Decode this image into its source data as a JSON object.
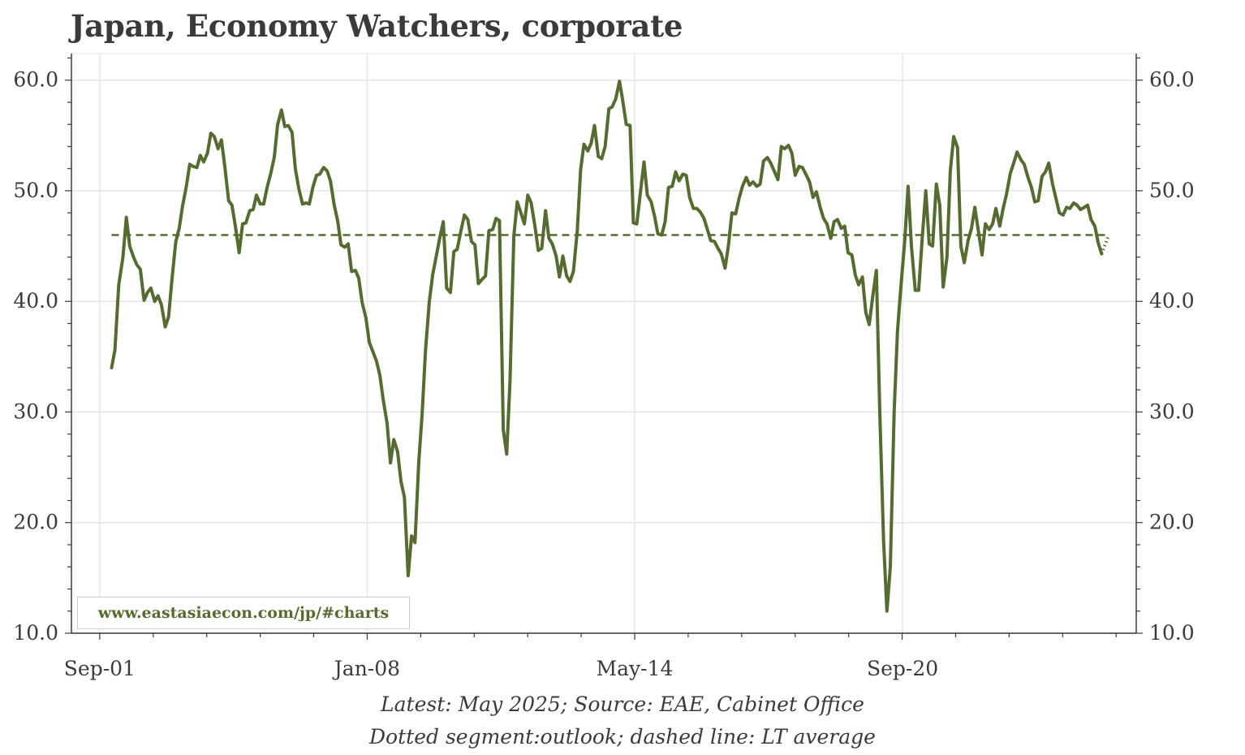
{
  "title": "Japan, Economy Watchers, corporate",
  "footnotes": [
    "Latest: May 2025; Source: EAE, Cabinet Office",
    "Dotted segment:outlook; dashed line: LT average"
  ],
  "watermark": "www.eastasiaecon.com/jp/#charts",
  "colors": {
    "series": "#556b2f",
    "grid": "#e6e6e6",
    "axis": "#3a3a3a",
    "text": "#3a3a3a"
  },
  "chart_data": {
    "type": "line",
    "title": "Japan, Economy Watchers, corporate",
    "xlabel": "",
    "ylabel": "",
    "ylim": [
      10,
      62.4
    ],
    "xlim": [
      2001.0,
      2026.2
    ],
    "grid": true,
    "y_axis_both_sides": true,
    "legend": "none",
    "y_ticks": [
      {
        "value": 10,
        "label": "10.0"
      },
      {
        "value": 20,
        "label": "20.0"
      },
      {
        "value": 30,
        "label": "30.0"
      },
      {
        "value": 40,
        "label": "40.0"
      },
      {
        "value": 50,
        "label": "50.0"
      },
      {
        "value": 60,
        "label": "60.0"
      }
    ],
    "x_ticks": [
      {
        "value": 2001.67,
        "label": "Sep-01"
      },
      {
        "value": 2008.0,
        "label": "Jan-08"
      },
      {
        "value": 2014.33,
        "label": "May-14"
      },
      {
        "value": 2020.67,
        "label": "Sep-20"
      }
    ],
    "series": [
      {
        "role": "actual",
        "style": "solid",
        "points": [
          [
            2001.95,
            34.0
          ],
          [
            2002.03,
            35.6
          ],
          [
            2002.12,
            41.5
          ],
          [
            2002.22,
            44.0
          ],
          [
            2002.3,
            47.6
          ],
          [
            2002.38,
            45.0
          ],
          [
            2002.47,
            44.0
          ],
          [
            2002.55,
            43.3
          ],
          [
            2002.63,
            42.9
          ],
          [
            2002.72,
            40.1
          ],
          [
            2002.8,
            40.8
          ],
          [
            2002.88,
            41.2
          ],
          [
            2002.97,
            40.0
          ],
          [
            2003.05,
            40.5
          ],
          [
            2003.13,
            39.7
          ],
          [
            2003.22,
            37.7
          ],
          [
            2003.3,
            38.6
          ],
          [
            2003.38,
            42.0
          ],
          [
            2003.47,
            45.4
          ],
          [
            2003.55,
            46.6
          ],
          [
            2003.63,
            48.6
          ],
          [
            2003.72,
            50.4
          ],
          [
            2003.8,
            52.4
          ],
          [
            2003.88,
            52.2
          ],
          [
            2003.97,
            52.1
          ],
          [
            2004.05,
            53.2
          ],
          [
            2004.13,
            52.6
          ],
          [
            2004.22,
            53.4
          ],
          [
            2004.3,
            55.2
          ],
          [
            2004.38,
            54.9
          ],
          [
            2004.47,
            53.8
          ],
          [
            2004.55,
            54.6
          ],
          [
            2004.63,
            52.2
          ],
          [
            2004.72,
            49.1
          ],
          [
            2004.8,
            48.7
          ],
          [
            2004.88,
            46.8
          ],
          [
            2004.97,
            44.4
          ],
          [
            2005.05,
            47.0
          ],
          [
            2005.13,
            47.1
          ],
          [
            2005.22,
            48.2
          ],
          [
            2005.3,
            48.3
          ],
          [
            2005.38,
            49.6
          ],
          [
            2005.47,
            48.8
          ],
          [
            2005.55,
            48.8
          ],
          [
            2005.63,
            50.3
          ],
          [
            2005.72,
            51.6
          ],
          [
            2005.8,
            53.0
          ],
          [
            2005.88,
            56.0
          ],
          [
            2005.97,
            57.3
          ],
          [
            2006.05,
            55.8
          ],
          [
            2006.13,
            55.9
          ],
          [
            2006.22,
            55.3
          ],
          [
            2006.3,
            52.0
          ],
          [
            2006.38,
            50.2
          ],
          [
            2006.47,
            48.8
          ],
          [
            2006.55,
            48.9
          ],
          [
            2006.63,
            48.8
          ],
          [
            2006.72,
            50.4
          ],
          [
            2006.8,
            51.4
          ],
          [
            2006.88,
            51.5
          ],
          [
            2006.97,
            52.1
          ],
          [
            2007.05,
            51.8
          ],
          [
            2007.13,
            50.9
          ],
          [
            2007.22,
            48.7
          ],
          [
            2007.3,
            47.3
          ],
          [
            2007.38,
            45.1
          ],
          [
            2007.47,
            44.9
          ],
          [
            2007.55,
            45.2
          ],
          [
            2007.63,
            42.7
          ],
          [
            2007.72,
            42.8
          ],
          [
            2007.8,
            42.1
          ],
          [
            2007.88,
            39.9
          ],
          [
            2007.97,
            38.5
          ],
          [
            2008.05,
            36.3
          ],
          [
            2008.13,
            35.5
          ],
          [
            2008.22,
            34.6
          ],
          [
            2008.3,
            33.3
          ],
          [
            2008.38,
            31.1
          ],
          [
            2008.47,
            29.0
          ],
          [
            2008.55,
            25.4
          ],
          [
            2008.63,
            27.5
          ],
          [
            2008.72,
            26.4
          ],
          [
            2008.8,
            23.7
          ],
          [
            2008.88,
            22.3
          ],
          [
            2008.97,
            15.2
          ],
          [
            2009.05,
            18.8
          ],
          [
            2009.13,
            18.2
          ],
          [
            2009.22,
            25.5
          ],
          [
            2009.3,
            29.8
          ],
          [
            2009.38,
            35.6
          ],
          [
            2009.47,
            40.0
          ],
          [
            2009.55,
            42.4
          ],
          [
            2009.63,
            44.0
          ],
          [
            2009.72,
            45.8
          ],
          [
            2009.8,
            47.2
          ],
          [
            2009.88,
            41.2
          ],
          [
            2009.97,
            40.8
          ],
          [
            2010.05,
            44.5
          ],
          [
            2010.13,
            44.7
          ],
          [
            2010.22,
            46.4
          ],
          [
            2010.3,
            47.8
          ],
          [
            2010.38,
            47.4
          ],
          [
            2010.47,
            45.4
          ],
          [
            2010.55,
            45.1
          ],
          [
            2010.63,
            41.6
          ],
          [
            2010.72,
            42.0
          ],
          [
            2010.8,
            42.3
          ],
          [
            2010.88,
            46.4
          ],
          [
            2010.97,
            46.5
          ],
          [
            2011.05,
            47.5
          ],
          [
            2011.13,
            47.3
          ],
          [
            2011.22,
            28.4
          ],
          [
            2011.3,
            26.2
          ],
          [
            2011.38,
            32.8
          ],
          [
            2011.47,
            45.9
          ],
          [
            2011.55,
            49.0
          ],
          [
            2011.63,
            48.1
          ],
          [
            2011.72,
            47.0
          ],
          [
            2011.8,
            49.6
          ],
          [
            2011.88,
            48.9
          ],
          [
            2011.97,
            46.8
          ],
          [
            2012.05,
            44.6
          ],
          [
            2012.13,
            44.8
          ],
          [
            2012.22,
            48.2
          ],
          [
            2012.3,
            45.7
          ],
          [
            2012.38,
            45.2
          ],
          [
            2012.47,
            44.1
          ],
          [
            2012.55,
            42.2
          ],
          [
            2012.63,
            44.1
          ],
          [
            2012.72,
            42.3
          ],
          [
            2012.8,
            41.8
          ],
          [
            2012.88,
            42.7
          ],
          [
            2012.97,
            46.3
          ],
          [
            2013.05,
            51.9
          ],
          [
            2013.13,
            54.2
          ],
          [
            2013.22,
            53.6
          ],
          [
            2013.3,
            54.3
          ],
          [
            2013.38,
            55.9
          ],
          [
            2013.47,
            53.1
          ],
          [
            2013.55,
            52.9
          ],
          [
            2013.63,
            54.0
          ],
          [
            2013.72,
            57.4
          ],
          [
            2013.8,
            57.6
          ],
          [
            2013.88,
            58.3
          ],
          [
            2013.97,
            59.9
          ],
          [
            2014.05,
            58.1
          ],
          [
            2014.13,
            56.0
          ],
          [
            2014.22,
            55.9
          ],
          [
            2014.3,
            47.1
          ],
          [
            2014.38,
            47.0
          ],
          [
            2014.47,
            50.0
          ],
          [
            2014.55,
            52.6
          ],
          [
            2014.63,
            49.6
          ],
          [
            2014.72,
            49.0
          ],
          [
            2014.8,
            47.7
          ],
          [
            2014.88,
            46.1
          ],
          [
            2014.97,
            46.0
          ],
          [
            2015.05,
            47.2
          ],
          [
            2015.13,
            50.3
          ],
          [
            2015.22,
            50.4
          ],
          [
            2015.3,
            51.7
          ],
          [
            2015.38,
            50.9
          ],
          [
            2015.47,
            51.5
          ],
          [
            2015.55,
            51.4
          ],
          [
            2015.63,
            49.4
          ],
          [
            2015.72,
            48.4
          ],
          [
            2015.8,
            48.4
          ],
          [
            2015.88,
            48.1
          ],
          [
            2015.97,
            47.5
          ],
          [
            2016.05,
            46.5
          ],
          [
            2016.13,
            45.5
          ],
          [
            2016.22,
            45.4
          ],
          [
            2016.3,
            44.8
          ],
          [
            2016.38,
            44.3
          ],
          [
            2016.47,
            43.0
          ],
          [
            2016.55,
            45.1
          ],
          [
            2016.63,
            48.0
          ],
          [
            2016.72,
            47.9
          ],
          [
            2016.8,
            49.3
          ],
          [
            2016.88,
            50.4
          ],
          [
            2016.97,
            51.2
          ],
          [
            2017.05,
            50.5
          ],
          [
            2017.13,
            50.8
          ],
          [
            2017.22,
            50.4
          ],
          [
            2017.3,
            50.6
          ],
          [
            2017.38,
            52.7
          ],
          [
            2017.47,
            53.0
          ],
          [
            2017.55,
            52.5
          ],
          [
            2017.63,
            51.8
          ],
          [
            2017.72,
            51.0
          ],
          [
            2017.8,
            54.0
          ],
          [
            2017.88,
            53.8
          ],
          [
            2017.97,
            54.1
          ],
          [
            2018.05,
            53.4
          ],
          [
            2018.13,
            51.4
          ],
          [
            2018.22,
            52.2
          ],
          [
            2018.3,
            52.1
          ],
          [
            2018.38,
            51.5
          ],
          [
            2018.47,
            50.8
          ],
          [
            2018.55,
            49.4
          ],
          [
            2018.63,
            49.9
          ],
          [
            2018.72,
            48.5
          ],
          [
            2018.8,
            47.5
          ],
          [
            2018.88,
            47.0
          ],
          [
            2018.97,
            45.7
          ],
          [
            2019.05,
            47.2
          ],
          [
            2019.13,
            47.4
          ],
          [
            2019.22,
            46.6
          ],
          [
            2019.3,
            46.8
          ],
          [
            2019.38,
            44.4
          ],
          [
            2019.47,
            44.2
          ],
          [
            2019.55,
            42.4
          ],
          [
            2019.63,
            41.5
          ],
          [
            2019.72,
            42.2
          ],
          [
            2019.8,
            39.0
          ],
          [
            2019.88,
            37.9
          ],
          [
            2019.97,
            40.6
          ],
          [
            2020.05,
            42.8
          ],
          [
            2020.13,
            30.0
          ],
          [
            2020.22,
            18.3
          ],
          [
            2020.3,
            12.0
          ],
          [
            2020.38,
            16.0
          ],
          [
            2020.47,
            30.0
          ],
          [
            2020.55,
            37.3
          ],
          [
            2020.63,
            41.3
          ],
          [
            2020.72,
            45.4
          ],
          [
            2020.8,
            50.4
          ],
          [
            2020.88,
            45.0
          ],
          [
            2020.97,
            41.0
          ],
          [
            2021.05,
            41.0
          ],
          [
            2021.13,
            45.4
          ],
          [
            2021.22,
            50.0
          ],
          [
            2021.3,
            45.2
          ],
          [
            2021.38,
            45.0
          ],
          [
            2021.47,
            50.6
          ],
          [
            2021.55,
            48.7
          ],
          [
            2021.63,
            41.3
          ],
          [
            2021.72,
            44.0
          ],
          [
            2021.8,
            51.8
          ],
          [
            2021.88,
            54.9
          ],
          [
            2021.97,
            53.9
          ],
          [
            2022.05,
            45.0
          ],
          [
            2022.13,
            43.5
          ],
          [
            2022.22,
            45.5
          ],
          [
            2022.3,
            46.6
          ],
          [
            2022.38,
            48.5
          ],
          [
            2022.47,
            46.2
          ],
          [
            2022.55,
            44.2
          ],
          [
            2022.63,
            47.0
          ],
          [
            2022.72,
            46.5
          ],
          [
            2022.8,
            47.0
          ],
          [
            2022.88,
            48.4
          ],
          [
            2022.97,
            46.8
          ],
          [
            2023.05,
            48.4
          ],
          [
            2023.13,
            49.7
          ],
          [
            2023.22,
            51.6
          ],
          [
            2023.3,
            52.5
          ],
          [
            2023.38,
            53.5
          ],
          [
            2023.47,
            52.8
          ],
          [
            2023.55,
            52.4
          ],
          [
            2023.63,
            51.3
          ],
          [
            2023.72,
            50.3
          ],
          [
            2023.8,
            49.0
          ],
          [
            2023.88,
            49.1
          ],
          [
            2023.97,
            51.3
          ],
          [
            2024.05,
            51.7
          ],
          [
            2024.13,
            52.5
          ],
          [
            2024.22,
            50.6
          ],
          [
            2024.3,
            49.3
          ],
          [
            2024.38,
            48.0
          ],
          [
            2024.47,
            47.8
          ],
          [
            2024.55,
            48.5
          ],
          [
            2024.63,
            48.4
          ],
          [
            2024.72,
            48.9
          ],
          [
            2024.8,
            48.7
          ],
          [
            2024.88,
            48.3
          ],
          [
            2024.97,
            48.5
          ],
          [
            2025.05,
            48.7
          ],
          [
            2025.13,
            47.4
          ],
          [
            2025.22,
            46.8
          ],
          [
            2025.3,
            45.3
          ],
          [
            2025.38,
            44.3
          ]
        ]
      },
      {
        "role": "outlook",
        "style": "dotted",
        "points": [
          [
            2025.38,
            44.3
          ],
          [
            2025.47,
            45.2
          ],
          [
            2025.55,
            46.0
          ]
        ]
      },
      {
        "role": "long-term average",
        "style": "dashed",
        "points": [
          [
            2001.95,
            46.0
          ],
          [
            2025.55,
            46.0
          ]
        ]
      }
    ]
  }
}
